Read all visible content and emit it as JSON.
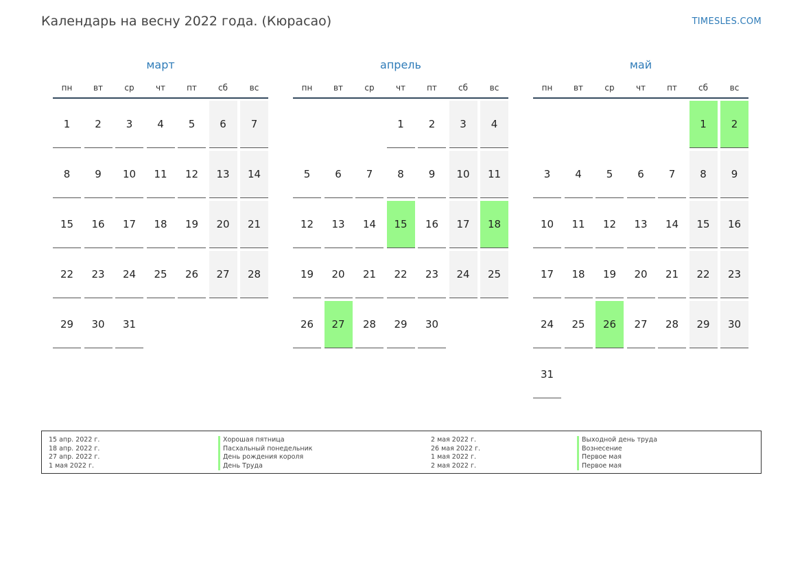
{
  "header": {
    "title": "Календарь на весну 2022 года. (Кюрасао)",
    "site": "TIMESLES.COM"
  },
  "weekdays": [
    "пн",
    "вт",
    "ср",
    "чт",
    "пт",
    "сб",
    "вс"
  ],
  "colors": {
    "accent": "#2e7bb8",
    "holiday": "#99f98a",
    "weekend": "#f3f3f3"
  },
  "months": [
    {
      "name": "март",
      "first_weekday": 1,
      "days": 31,
      "holidays": []
    },
    {
      "name": "апрель",
      "first_weekday": 4,
      "days": 30,
      "holidays": [
        15,
        18,
        27
      ]
    },
    {
      "name": "май",
      "first_weekday": 6,
      "days": 31,
      "holidays": [
        1,
        2,
        26
      ]
    }
  ],
  "legend": {
    "left": [
      {
        "date": "15 апр. 2022 г.",
        "name": "Хорошая пятница"
      },
      {
        "date": "18 апр. 2022 г.",
        "name": "Пасхальный понедельник"
      },
      {
        "date": "27 апр. 2022 г.",
        "name": "День рождения короля"
      },
      {
        "date": "1 мая 2022 г.",
        "name": "День Труда"
      }
    ],
    "right": [
      {
        "date": "2 мая 2022 г.",
        "name": "Выходной день труда"
      },
      {
        "date": "26 мая 2022 г.",
        "name": "Вознесение"
      },
      {
        "date": "1 мая 2022 г.",
        "name": "Первое мая"
      },
      {
        "date": "2 мая 2022 г.",
        "name": "Первое мая"
      }
    ]
  }
}
